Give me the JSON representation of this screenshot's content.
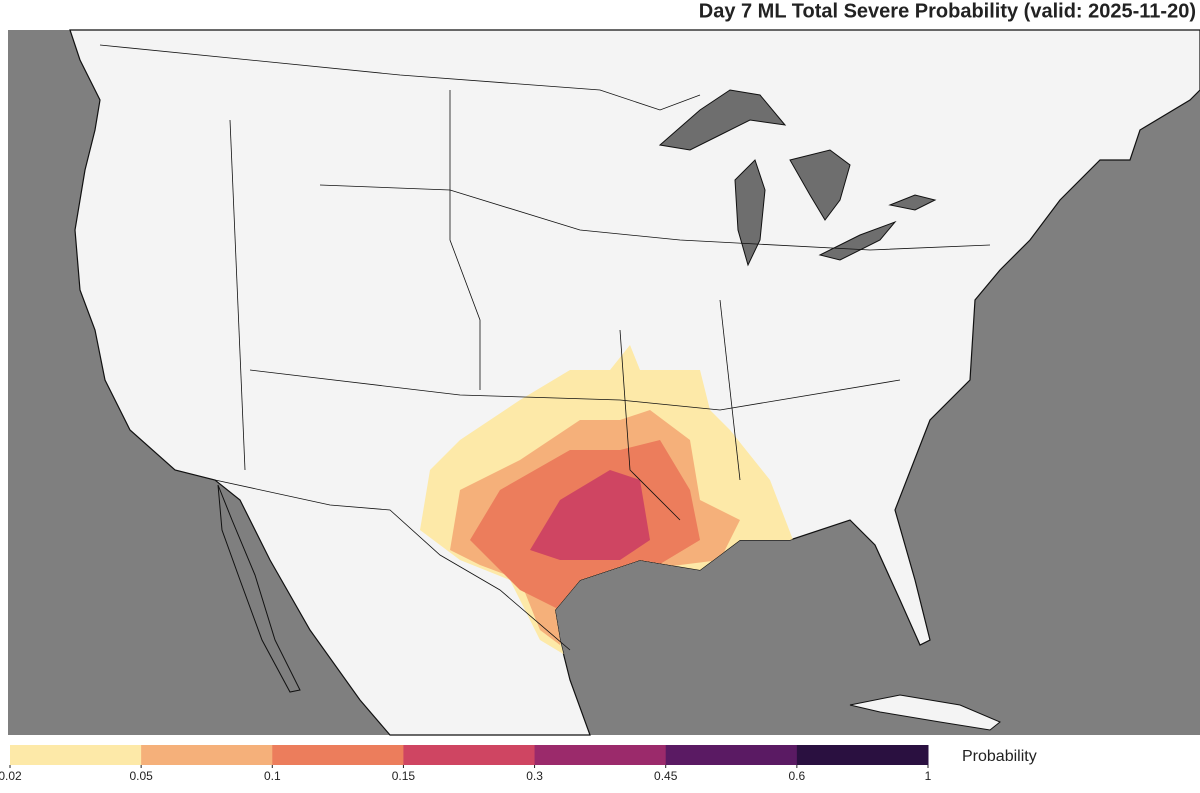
{
  "map": {
    "title": "Day 7 ML Total Severe Probability (valid: 2025-11-20)",
    "colorbar": {
      "label": "Probability",
      "boundaries": [
        0.02,
        0.05,
        0.1,
        0.15,
        0.3,
        0.45,
        0.6,
        1
      ],
      "colors": [
        "#fde9a8",
        "#f5b07a",
        "#ec7d5c",
        "#cf4562",
        "#9b2a6b",
        "#5a1a63",
        "#2a1040"
      ]
    }
  }
}
